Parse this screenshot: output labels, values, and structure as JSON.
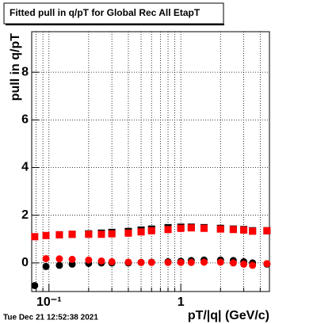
{
  "chart_data": {
    "type": "scatter",
    "title": "Fitted pull in q/pT for Global Rec All EtapT",
    "y_label": "pull in q/pT",
    "x_label": "pT/|q| (GeV/c)",
    "timestamp": "Tue Dec 21 12:52:38 2021",
    "log_x": true,
    "grid": true,
    "xlim": [
      0.074,
      4.7
    ],
    "ylim": [
      -1.2,
      9.7
    ],
    "xticks": [
      {
        "value": 0.1,
        "label": "10⁻¹"
      },
      1
    ],
    "yticks": [
      0,
      2,
      4,
      6,
      8
    ],
    "x": [
      0.078,
      0.095,
      0.12,
      0.15,
      0.2,
      0.25,
      0.3,
      0.4,
      0.5,
      0.6,
      0.8,
      1.0,
      1.2,
      1.5,
      2.0,
      2.5,
      3.0,
      3.5,
      4.5
    ],
    "series": [
      {
        "color": "#000000",
        "marker": "square",
        "values": [
          null,
          null,
          1.18,
          1.2,
          1.22,
          1.25,
          1.28,
          1.32,
          1.38,
          1.42,
          1.48,
          1.5,
          1.5,
          1.48,
          1.45,
          1.42,
          1.4,
          1.35,
          1.35
        ]
      },
      {
        "color": "#000000",
        "marker": "circle",
        "values": [
          -0.95,
          -0.15,
          -0.1,
          -0.05,
          -0.02,
          0,
          0,
          0,
          0.02,
          0.03,
          0.05,
          0.07,
          0.1,
          0.12,
          0.12,
          0.1,
          0.05,
          0,
          -0.05
        ]
      },
      {
        "color": "#ff0000",
        "marker": "square",
        "values": [
          1.1,
          1.15,
          1.18,
          1.2,
          1.2,
          1.2,
          1.22,
          1.25,
          1.3,
          1.35,
          1.4,
          1.45,
          1.47,
          1.45,
          1.42,
          1.4,
          1.38,
          1.33,
          1.35
        ]
      },
      {
        "color": "#ff0000",
        "marker": "circle",
        "values": [
          null,
          0.18,
          0.17,
          0.15,
          0.12,
          0.08,
          0.05,
          0.03,
          0.02,
          0.02,
          0.02,
          0.02,
          0.02,
          0.03,
          0.03,
          0,
          -0.05,
          -0.1,
          -0.03
        ]
      }
    ]
  }
}
